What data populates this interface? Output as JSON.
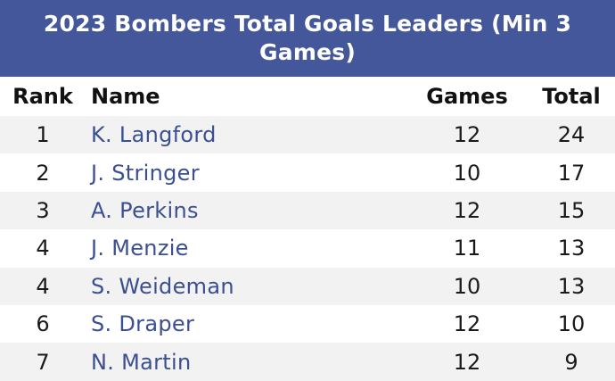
{
  "table": {
    "title": "2023 Bombers Total Goals Leaders (Min 3 Games)",
    "headers": {
      "rank": "Rank",
      "name": "Name",
      "games": "Games",
      "total": "Total"
    },
    "rows": [
      {
        "rank": "1",
        "name": "K. Langford",
        "games": "12",
        "total": "24"
      },
      {
        "rank": "2",
        "name": "J. Stringer",
        "games": "10",
        "total": "17"
      },
      {
        "rank": "3",
        "name": "A. Perkins",
        "games": "12",
        "total": "15"
      },
      {
        "rank": "4",
        "name": "J. Menzie",
        "games": "11",
        "total": "13"
      },
      {
        "rank": "4",
        "name": "S. Weideman",
        "games": "10",
        "total": "13"
      },
      {
        "rank": "6",
        "name": "S. Draper",
        "games": "12",
        "total": "10"
      },
      {
        "rank": "7",
        "name": "N. Martin",
        "games": "12",
        "total": "9"
      }
    ]
  },
  "colors": {
    "title_bg": "#43579a",
    "title_text": "#ffffff",
    "name_link": "#3b4f91",
    "row_stripe": "#f2f2f2"
  }
}
